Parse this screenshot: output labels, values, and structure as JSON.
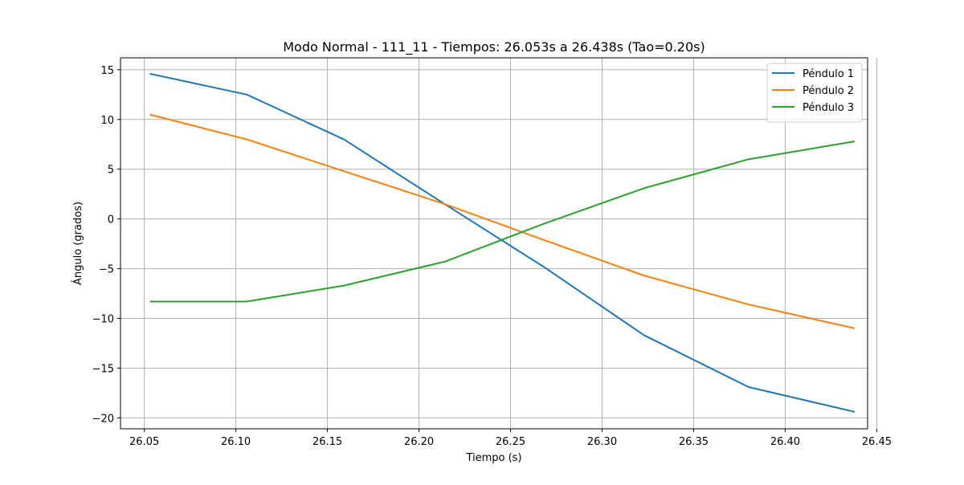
{
  "chart_data": {
    "type": "line",
    "title": "Modo Normal - 111_11 - Tiempos: 26.053s a 26.438s (Tao=0.20s)",
    "xlabel": "Tiempo (s)",
    "ylabel": "Ángulo (grados)",
    "xlim": [
      26.037,
      26.445
    ],
    "ylim": [
      -21.1,
      16.2
    ],
    "xticks": [
      26.05,
      26.1,
      26.15,
      26.2,
      26.25,
      26.3,
      26.35,
      26.4,
      26.45
    ],
    "xtick_labels": [
      "26.05",
      "26.10",
      "26.15",
      "26.20",
      "26.25",
      "26.30",
      "26.35",
      "26.40",
      "26.45"
    ],
    "yticks": [
      -20,
      -15,
      -10,
      -5,
      0,
      5,
      10,
      15
    ],
    "ytick_labels": [
      "−20",
      "−15",
      "−10",
      "−5",
      "0",
      "5",
      "10",
      "15"
    ],
    "grid": true,
    "legend_position": "top-right",
    "x": [
      26.053,
      26.106,
      26.159,
      26.214,
      26.268,
      26.323,
      26.38,
      26.438
    ],
    "series": [
      {
        "name": "Péndulo 1",
        "color": "#1f77b4",
        "values": [
          14.6,
          12.5,
          8.0,
          1.5,
          -4.8,
          -11.7,
          -16.9,
          -19.4
        ]
      },
      {
        "name": "Péndulo 2",
        "color": "#ff7f0e",
        "values": [
          10.5,
          8.0,
          4.8,
          1.5,
          -2.1,
          -5.7,
          -8.6,
          -11.0
        ]
      },
      {
        "name": "Péndulo 3",
        "color": "#2ca02c",
        "values": [
          -8.3,
          -8.3,
          -6.7,
          -4.3,
          -0.5,
          3.1,
          6.0,
          7.8
        ]
      }
    ]
  }
}
